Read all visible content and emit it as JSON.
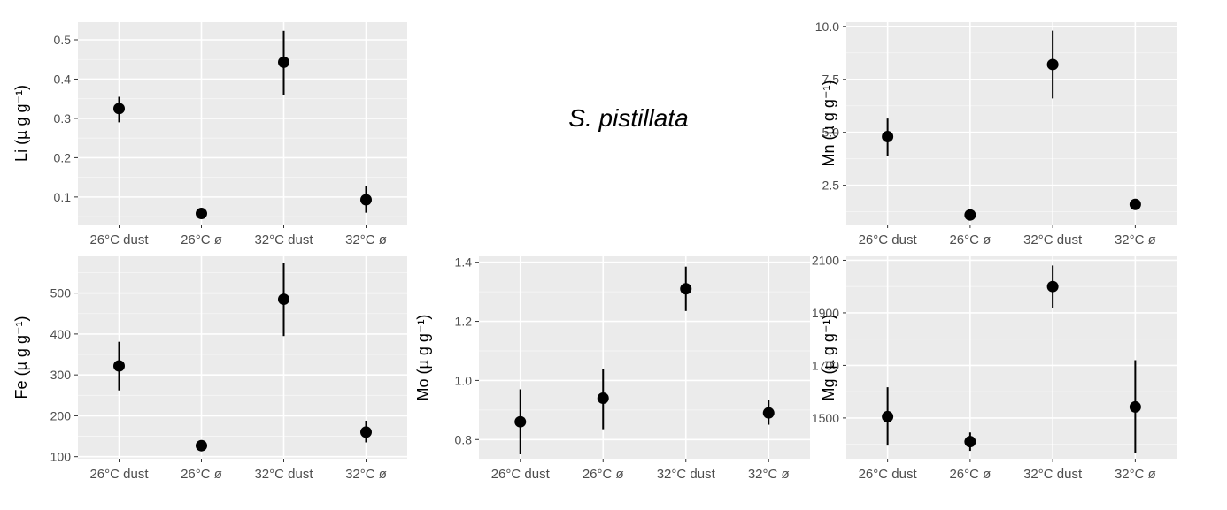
{
  "figure_title": "S. pistillata",
  "colors": {
    "panel_bg": "#EBEBEB",
    "grid": "#FFFFFF",
    "point": "#000000",
    "tick_text": "#4D4D4D",
    "axis_title": "#000000"
  },
  "chart_data": [
    {
      "type": "scatter",
      "element": "Li",
      "ylabel": "Li (µ g g⁻¹)",
      "categories": [
        "26°C dust",
        "26°C ø",
        "32°C dust",
        "32°C ø"
      ],
      "values": [
        0.325,
        0.058,
        0.443,
        0.093
      ],
      "error_low": [
        0.29,
        0.05,
        0.36,
        0.06
      ],
      "error_high": [
        0.355,
        0.065,
        0.523,
        0.127
      ],
      "ylim": [
        0.03,
        0.545
      ],
      "yticks": [
        0.1,
        0.2,
        0.3,
        0.4,
        0.5
      ],
      "ytick_labels": [
        "0.1",
        "0.2",
        "0.3",
        "0.4",
        "0.5"
      ],
      "grid": true
    },
    {
      "type": "scatter",
      "element": "Mn",
      "ylabel": "Mn (µ g g⁻¹)",
      "categories": [
        "26°C dust",
        "26°C ø",
        "32°C dust",
        "32°C ø"
      ],
      "values": [
        4.8,
        1.1,
        8.2,
        1.6
      ],
      "error_low": [
        3.9,
        1.0,
        6.6,
        1.45
      ],
      "error_high": [
        5.65,
        1.2,
        9.8,
        1.75
      ],
      "ylim": [
        0.65,
        10.2
      ],
      "yticks": [
        2.5,
        5.0,
        7.5,
        10.0
      ],
      "ytick_labels": [
        "2.5",
        "5.0",
        "7.5",
        "10.0"
      ],
      "grid": true
    },
    {
      "type": "scatter",
      "element": "Fe",
      "ylabel": "Fe (µ g g⁻¹)",
      "categories": [
        "26°C dust",
        "26°C ø",
        "32°C dust",
        "32°C ø"
      ],
      "values": [
        322,
        127,
        485,
        160
      ],
      "error_low": [
        262,
        120,
        395,
        135
      ],
      "error_high": [
        381,
        134,
        573,
        188
      ],
      "ylim": [
        95,
        590
      ],
      "yticks": [
        100,
        200,
        300,
        400,
        500
      ],
      "ytick_labels": [
        "100",
        "200",
        "300",
        "400",
        "500"
      ],
      "grid": true
    },
    {
      "type": "scatter",
      "element": "Mo",
      "ylabel": "Mo (µ g g⁻¹)",
      "categories": [
        "26°C dust",
        "26°C ø",
        "32°C dust",
        "32°C ø"
      ],
      "values": [
        0.86,
        0.94,
        1.31,
        0.89
      ],
      "error_low": [
        0.75,
        0.835,
        1.235,
        0.85
      ],
      "error_high": [
        0.97,
        1.04,
        1.385,
        0.935
      ],
      "ylim": [
        0.735,
        1.42
      ],
      "yticks": [
        0.8,
        1.0,
        1.2,
        1.4
      ],
      "ytick_labels": [
        "0.8",
        "1.0",
        "1.2",
        "1.4"
      ],
      "grid": true
    },
    {
      "type": "scatter",
      "element": "Mg",
      "ylabel": "Mg (µ g g⁻¹)",
      "categories": [
        "26°C dust",
        "26°C ø",
        "32°C dust",
        "32°C ø"
      ],
      "values": [
        1505,
        1410,
        2000,
        1542
      ],
      "error_low": [
        1395,
        1375,
        1920,
        1365
      ],
      "error_high": [
        1617,
        1445,
        2080,
        1720
      ],
      "ylim": [
        1345,
        2115
      ],
      "yticks": [
        1500,
        1700,
        1900,
        2100
      ],
      "ytick_labels": [
        "1500",
        "1700",
        "1900",
        "2100"
      ],
      "grid": true
    }
  ]
}
